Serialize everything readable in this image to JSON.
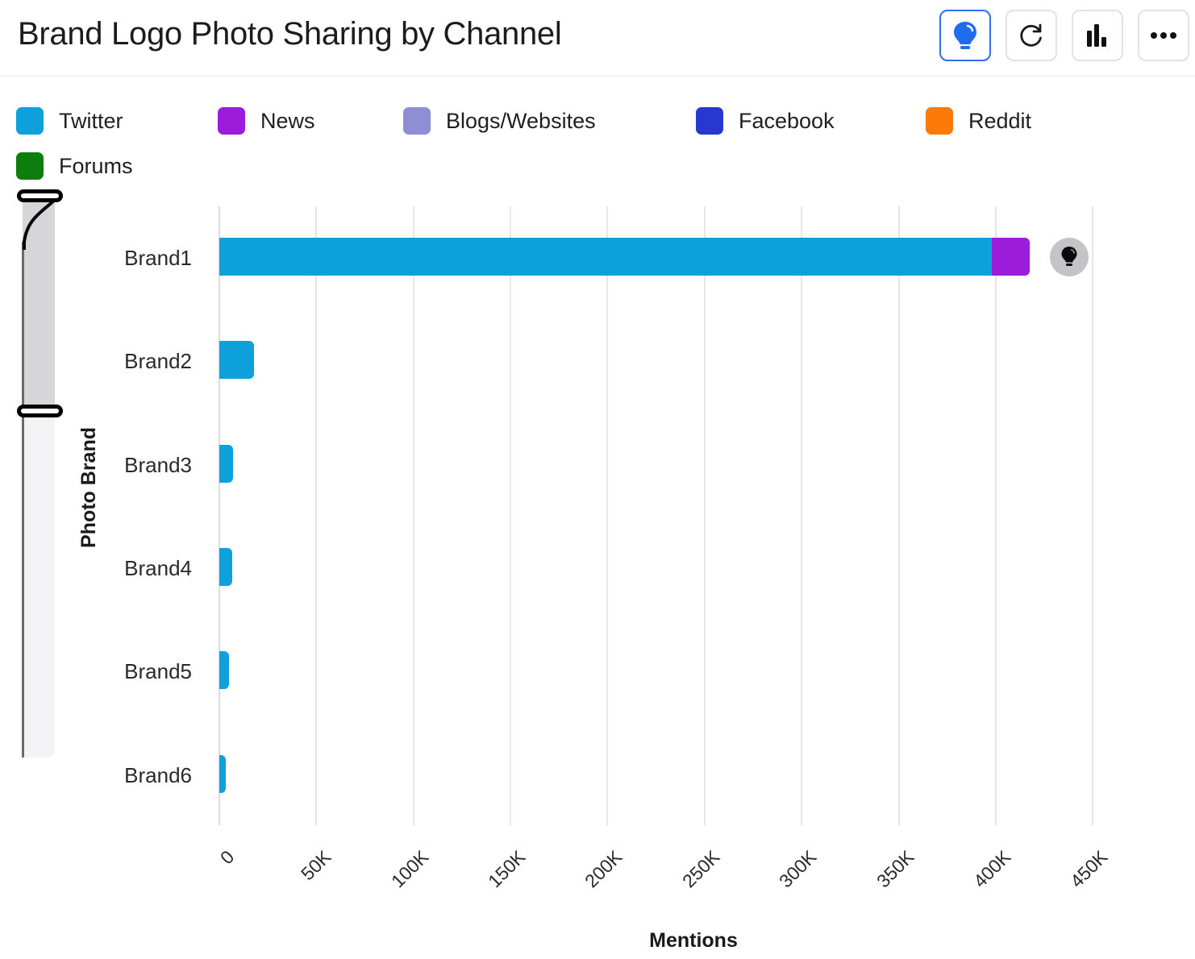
{
  "header": {
    "title": "Brand Logo Photo Sharing by Channel",
    "buttons": [
      {
        "name": "insights-button",
        "icon": "lightbulb-icon",
        "active": true
      },
      {
        "name": "refresh-button",
        "icon": "refresh-icon",
        "active": false
      },
      {
        "name": "chart-type-button",
        "icon": "bar-chart-icon",
        "active": false
      },
      {
        "name": "more-options-button",
        "icon": "more-horizontal-icon",
        "active": false
      }
    ]
  },
  "legend": [
    {
      "label": "Twitter",
      "color": "#0ea0db"
    },
    {
      "label": "News",
      "color": "#9b1ddb"
    },
    {
      "label": "Blogs/Websites",
      "color": "#8e8ed4"
    },
    {
      "label": "Facebook",
      "color": "#2638d0"
    },
    {
      "label": "Reddit",
      "color": "#fb7a0a"
    },
    {
      "label": "Forums",
      "color": "#0d7e0d"
    }
  ],
  "chart_data": {
    "type": "bar",
    "orientation": "horizontal",
    "stacked": true,
    "title": "Brand Logo Photo Sharing by Channel",
    "xlabel": "Mentions",
    "ylabel": "Photo Brand",
    "xlim": [
      0,
      450000
    ],
    "x_ticks": [
      "0",
      "50K",
      "100K",
      "150K",
      "200K",
      "250K",
      "300K",
      "350K",
      "400K",
      "450K"
    ],
    "categories": [
      "Brand1",
      "Brand2",
      "Brand3",
      "Brand4",
      "Brand5",
      "Brand6"
    ],
    "series": [
      {
        "name": "Twitter",
        "color": "#0ea0db",
        "values": [
          398000,
          18000,
          7000,
          6500,
          5000,
          3500
        ]
      },
      {
        "name": "News",
        "color": "#9b1ddb",
        "values": [
          19500,
          0,
          0,
          0,
          0,
          0
        ]
      },
      {
        "name": "Blogs/Websites",
        "color": "#8e8ed4",
        "values": [
          0,
          0,
          0,
          0,
          0,
          0
        ]
      },
      {
        "name": "Facebook",
        "color": "#2638d0",
        "values": [
          0,
          0,
          0,
          0,
          0,
          0
        ]
      },
      {
        "name": "Reddit",
        "color": "#fb7a0a",
        "values": [
          0,
          0,
          0,
          0,
          0,
          0
        ]
      },
      {
        "name": "Forums",
        "color": "#0d7e0d",
        "values": [
          0,
          0,
          0,
          0,
          0,
          0
        ]
      }
    ],
    "grid": true,
    "legend_position": "top"
  }
}
